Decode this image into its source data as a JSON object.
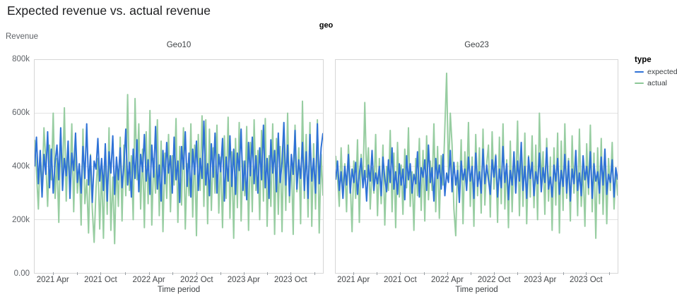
{
  "title": "Expected revenue vs. actual revenue",
  "facet_header": "geo",
  "legend": {
    "title": "type",
    "items": [
      {
        "label": "expected",
        "color": "#2f72d6"
      },
      {
        "label": "actual",
        "color": "#8cc897"
      }
    ]
  },
  "axis": {
    "y_title": "Revenue",
    "x_title": "Time period",
    "y_ticks": [
      "800k",
      "600k",
      "400k",
      "200k",
      "0.00"
    ],
    "x_ticks": [
      "2021 Apr",
      "2021 Oct",
      "2022 Apr",
      "2022 Oct",
      "2023 Apr",
      "2023 Oct"
    ]
  },
  "chart_data": [
    {
      "type": "line",
      "title": "Geo10",
      "x_unit": "week",
      "x_range": [
        "2021 Feb",
        "2024 Jan"
      ],
      "ylim_k": [
        0,
        800
      ],
      "grid_lines_k": [
        200,
        400,
        600
      ],
      "values_unit": "thousands",
      "series": [
        {
          "name": "expected",
          "color": "#2f72d6",
          "opacity": 1,
          "values": [
            400,
            510,
            335,
            460,
            285,
            445,
            370,
            530,
            320,
            465,
            300,
            415,
            480,
            350,
            545,
            310,
            430,
            365,
            495,
            280,
            450,
            385,
            525,
            340,
            410,
            300,
            475,
            355,
            560,
            330,
            440,
            265,
            420,
            390,
            505,
            345,
            430,
            310,
            485,
            270,
            455,
            375,
            515,
            295,
            435,
            350,
            470,
            320,
            400,
            540,
            330,
            415,
            285,
            465,
            355,
            500,
            305,
            445,
            380,
            520,
            345,
            425,
            295,
            480,
            360,
            550,
            315,
            405,
            270,
            460,
            335,
            490,
            375,
            440,
            300,
            510,
            350,
            420,
            265,
            475,
            390,
            530,
            325,
            450,
            285,
            465,
            370,
            495,
            310,
            430,
            355,
            570,
            330,
            410,
            290,
            485,
            360,
            525,
            300,
            445,
            380,
            505,
            270,
            435,
            345,
            515,
            325,
            465,
            295,
            450,
            385,
            540,
            310,
            420,
            275,
            490,
            365,
            510,
            335,
            440,
            300,
            470,
            350,
            555,
            320,
            430,
            280,
            500,
            375,
            460,
            305,
            525,
            340,
            415,
            565,
            330,
            480,
            290,
            445,
            370,
            535,
            315,
            425,
            355,
            490,
            310,
            455,
            280,
            520,
            345,
            430,
            300,
            560,
            335,
            470,
            525
          ]
        },
        {
          "name": "actual",
          "color": "#8cc897",
          "opacity": 0.9,
          "values": [
            500,
            380,
            240,
            455,
            300,
            545,
            420,
            250,
            480,
            350,
            600,
            280,
            430,
            190,
            520,
            360,
            620,
            270,
            465,
            330,
            560,
            230,
            490,
            300,
            410,
            180,
            540,
            260,
            350,
            150,
            445,
            240,
            115,
            320,
            430,
            165,
            390,
            130,
            475,
            220,
            545,
            160,
            360,
            110,
            420,
            250,
            510,
            195,
            480,
            290,
            670,
            310,
            440,
            200,
            655,
            350,
            560,
            240,
            465,
            170,
            530,
            260,
            610,
            180,
            430,
            300,
            575,
            215,
            495,
            155,
            450,
            280,
            520,
            230,
            440,
            330,
            580,
            190,
            475,
            255,
            545,
            165,
            410,
            290,
            560,
            210,
            480,
            140,
            520,
            310,
            590,
            250,
            575,
            185,
            540,
            235,
            470,
            300,
            555,
            225,
            435,
            170,
            515,
            280,
            585,
            205,
            455,
            130,
            505,
            245,
            565,
            195,
            420,
            290,
            550,
            160,
            490,
            230,
            575,
            310,
            460,
            200,
            535,
            270,
            580,
            175,
            440,
            250,
            560,
            145,
            505,
            220,
            475,
            155,
            525,
            235,
            600,
            265,
            430,
            145,
            555,
            305,
            470,
            185,
            645,
            280,
            520,
            210,
            565,
            175,
            485,
            240,
            575,
            150,
            445,
            290
          ]
        }
      ]
    },
    {
      "type": "line",
      "title": "Geo23",
      "x_unit": "week",
      "x_range": [
        "2021 Feb",
        "2024 Jan"
      ],
      "ylim_k": [
        0,
        800
      ],
      "grid_lines_k": [
        200,
        400,
        600
      ],
      "values_unit": "thousands",
      "series": [
        {
          "name": "expected",
          "color": "#2f72d6",
          "opacity": 1,
          "values": [
            350,
            420,
            310,
            380,
            280,
            400,
            330,
            445,
            300,
            390,
            340,
            415,
            295,
            370,
            430,
            320,
            385,
            270,
            405,
            345,
            460,
            310,
            375,
            335,
            400,
            290,
            435,
            355,
            305,
            425,
            340,
            470,
            315,
            380,
            295,
            410,
            330,
            390,
            275,
            440,
            350,
            410,
            300,
            370,
            335,
            455,
            285,
            395,
            360,
            425,
            310,
            480,
            340,
            395,
            270,
            430,
            355,
            405,
            315,
            445,
            290,
            375,
            340,
            460,
            305,
            415,
            330,
            385,
            265,
            420,
            350,
            390,
            310,
            435,
            345,
            400,
            280,
            450,
            325,
            380,
            300,
            465,
            335,
            405,
            350,
            295,
            425,
            360,
            440,
            285,
            390,
            320,
            475,
            340,
            410,
            275,
            385,
            330,
            455,
            300,
            420,
            345,
            490,
            310,
            400,
            280,
            435,
            355,
            415,
            290,
            380,
            335,
            450,
            305,
            395,
            340,
            470,
            315,
            360,
            285,
            405,
            345,
            430,
            295,
            385,
            325,
            445,
            300,
            420,
            270,
            390,
            335,
            460,
            310,
            375,
            290,
            440,
            350,
            400,
            320,
            455,
            280,
            410,
            345,
            380,
            300,
            435,
            330,
            465,
            295,
            370,
            340,
            425,
            285,
            395,
            350
          ]
        },
        {
          "name": "actual",
          "color": "#8cc897",
          "opacity": 0.9,
          "values": [
            440,
            360,
            250,
            470,
            300,
            410,
            230,
            480,
            340,
            155,
            420,
            280,
            500,
            190,
            445,
            330,
            640,
            360,
            470,
            240,
            395,
            300,
            520,
            215,
            430,
            260,
            480,
            180,
            400,
            310,
            535,
            230,
            450,
            170,
            490,
            285,
            405,
            220,
            465,
            320,
            545,
            250,
            380,
            160,
            430,
            290,
            505,
            235,
            460,
            195,
            515,
            275,
            420,
            310,
            560,
            230,
            475,
            205,
            440,
            330,
            545,
            750,
            365,
            600,
            480,
            240,
            140,
            415,
            280,
            500,
            185,
            455,
            320,
            565,
            250,
            435,
            175,
            520,
            290,
            470,
            225,
            540,
            255,
            410,
            480,
            210,
            530,
            315,
            445,
            190,
            510,
            260,
            560,
            240,
            425,
            170,
            495,
            230,
            450,
            305,
            570,
            215,
            465,
            250,
            525,
            185,
            440,
            285,
            515,
            245,
            480,
            200,
            600,
            340,
            455,
            220,
            505,
            270,
            435,
            160,
            470,
            255,
            525,
            150,
            495,
            235,
            560,
            280,
            430,
            195,
            515,
            300,
            460,
            215,
            540,
            250,
            400,
            175,
            485,
            295,
            555,
            230,
            450,
            130,
            470,
            260,
            505,
            220,
            465,
            185,
            430,
            310,
            490,
            240,
            390,
            290
          ]
        }
      ]
    }
  ]
}
